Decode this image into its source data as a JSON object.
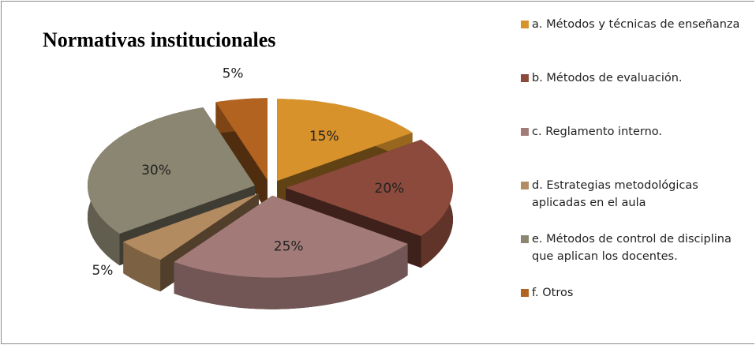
{
  "chart_data": {
    "type": "pie3d",
    "title": "Normativas institucionales",
    "categories": [
      "a. Métodos y técnicas de enseñanza",
      "b. Métodos de evaluación.",
      "c. Reglamento interno.",
      "d. Estrategias metodológicas aplicadas en el aula",
      "e. Métodos de control de disciplina que aplican los docentes.",
      "f. Otros"
    ],
    "values": [
      15,
      20,
      25,
      5,
      30,
      5
    ],
    "value_labels": [
      "15%",
      "20%",
      "25%",
      "5%",
      "30%",
      "5%"
    ],
    "colors": [
      "#d8922c",
      "#8b4a3b",
      "#a27b79",
      "#b38b60",
      "#8b8671",
      "#b2631f"
    ],
    "legend": "right"
  }
}
